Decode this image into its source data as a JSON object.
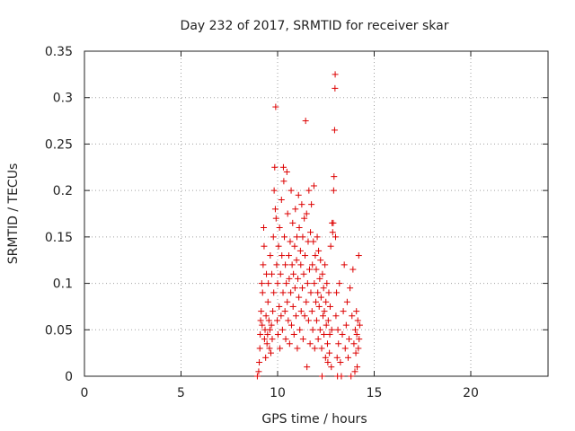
{
  "chart_data": {
    "type": "scatter",
    "title": "Day 232 of 2017, SRMTID for receiver skar",
    "xlabel": "GPS time / hours",
    "ylabel": "SRMTID / TECUs",
    "xlim": [
      0,
      24
    ],
    "ylim": [
      0,
      0.35
    ],
    "grid": true,
    "x_ticks": [
      0,
      5,
      10,
      15,
      20
    ],
    "x_tick_labels": [
      "0",
      "5",
      "10",
      "15",
      "20"
    ],
    "y_ticks": [
      0,
      0.05,
      0.1,
      0.15,
      0.2,
      0.25,
      0.3,
      0.35
    ],
    "y_tick_labels": [
      "0",
      "0.05",
      "0.1",
      "0.15",
      "0.2",
      "0.25",
      "0.3",
      "0.35"
    ],
    "marker": "+",
    "marker_color": "#dd0000",
    "axis_color": "#222222",
    "grid_color": "#a0a0a0",
    "series": [
      {
        "name": "SRMTID",
        "points": [
          [
            8.95,
            0.0
          ],
          [
            9.02,
            0.005
          ],
          [
            9.05,
            0.015
          ],
          [
            9.08,
            0.03
          ],
          [
            9.1,
            0.045
          ],
          [
            9.12,
            0.06
          ],
          [
            9.15,
            0.07
          ],
          [
            9.18,
            0.1
          ],
          [
            9.2,
            0.055
          ],
          [
            9.22,
            0.09
          ],
          [
            9.25,
            0.12
          ],
          [
            9.28,
            0.16
          ],
          [
            9.3,
            0.14
          ],
          [
            9.32,
            0.04
          ],
          [
            9.35,
            0.05
          ],
          [
            9.38,
            0.02
          ],
          [
            9.4,
            0.065
          ],
          [
            9.42,
            0.11
          ],
          [
            9.45,
            0.035
          ],
          [
            9.48,
            0.045
          ],
          [
            9.5,
            0.08
          ],
          [
            9.52,
            0.1
          ],
          [
            9.55,
            0.06
          ],
          [
            9.58,
            0.03
          ],
          [
            9.6,
            0.05
          ],
          [
            9.62,
            0.13
          ],
          [
            9.65,
            0.025
          ],
          [
            9.68,
            0.055
          ],
          [
            9.7,
            0.11
          ],
          [
            9.72,
            0.04
          ],
          [
            9.75,
            0.07
          ],
          [
            9.78,
            0.15
          ],
          [
            9.8,
            0.09
          ],
          [
            9.82,
            0.2
          ],
          [
            9.85,
            0.225
          ],
          [
            9.88,
            0.18
          ],
          [
            9.9,
            0.29
          ],
          [
            9.92,
            0.17
          ],
          [
            9.95,
            0.12
          ],
          [
            9.98,
            0.06
          ],
          [
            10.0,
            0.1
          ],
          [
            10.02,
            0.045
          ],
          [
            10.05,
            0.14
          ],
          [
            10.08,
            0.075
          ],
          [
            10.1,
            0.16
          ],
          [
            10.12,
            0.03
          ],
          [
            10.15,
            0.11
          ],
          [
            10.18,
            0.065
          ],
          [
            10.2,
            0.19
          ],
          [
            10.22,
            0.13
          ],
          [
            10.25,
            0.05
          ],
          [
            10.28,
            0.09
          ],
          [
            10.3,
            0.225
          ],
          [
            10.32,
            0.21
          ],
          [
            10.35,
            0.15
          ],
          [
            10.38,
            0.07
          ],
          [
            10.4,
            0.12
          ],
          [
            10.42,
            0.04
          ],
          [
            10.45,
            0.1
          ],
          [
            10.48,
            0.22
          ],
          [
            10.5,
            0.08
          ],
          [
            10.52,
            0.175
          ],
          [
            10.55,
            0.06
          ],
          [
            10.58,
            0.13
          ],
          [
            10.6,
            0.105
          ],
          [
            10.62,
            0.035
          ],
          [
            10.65,
            0.145
          ],
          [
            10.68,
            0.09
          ],
          [
            10.7,
            0.2
          ],
          [
            10.72,
            0.055
          ],
          [
            10.75,
            0.12
          ],
          [
            10.78,
            0.165
          ],
          [
            10.8,
            0.075
          ],
          [
            10.82,
            0.11
          ],
          [
            10.85,
            0.045
          ],
          [
            10.88,
            0.14
          ],
          [
            10.9,
            0.095
          ],
          [
            10.92,
            0.18
          ],
          [
            10.95,
            0.065
          ],
          [
            10.98,
            0.125
          ],
          [
            11.0,
            0.15
          ],
          [
            11.02,
            0.03
          ],
          [
            11.05,
            0.105
          ],
          [
            11.08,
            0.195
          ],
          [
            11.1,
            0.085
          ],
          [
            11.12,
            0.16
          ],
          [
            11.15,
            0.05
          ],
          [
            11.18,
            0.135
          ],
          [
            11.2,
            0.12
          ],
          [
            11.22,
            0.07
          ],
          [
            11.25,
            0.185
          ],
          [
            11.28,
            0.095
          ],
          [
            11.3,
            0.15
          ],
          [
            11.32,
            0.04
          ],
          [
            11.35,
            0.11
          ],
          [
            11.38,
            0.17
          ],
          [
            11.4,
            0.065
          ],
          [
            11.42,
            0.13
          ],
          [
            11.45,
            0.275
          ],
          [
            11.48,
            0.08
          ],
          [
            11.5,
            0.175
          ],
          [
            11.52,
            0.01
          ],
          [
            11.55,
            0.1
          ],
          [
            11.58,
            0.145
          ],
          [
            11.6,
            0.06
          ],
          [
            11.62,
            0.2
          ],
          [
            11.65,
            0.115
          ],
          [
            11.68,
            0.035
          ],
          [
            11.7,
            0.155
          ],
          [
            11.72,
            0.09
          ],
          [
            11.75,
            0.185
          ],
          [
            11.78,
            0.07
          ],
          [
            11.8,
            0.12
          ],
          [
            11.82,
            0.05
          ],
          [
            11.85,
            0.145
          ],
          [
            11.88,
            0.205
          ],
          [
            11.9,
            0.1
          ],
          [
            11.92,
            0.03
          ],
          [
            11.95,
            0.13
          ],
          [
            11.98,
            0.08
          ],
          [
            12.0,
            0.115
          ],
          [
            12.02,
            0.06
          ],
          [
            12.05,
            0.15
          ],
          [
            12.08,
            0.09
          ],
          [
            12.1,
            0.04
          ],
          [
            12.12,
            0.135
          ],
          [
            12.15,
            0.075
          ],
          [
            12.18,
            0.105
          ],
          [
            12.2,
            0.05
          ],
          [
            12.22,
            0.125
          ],
          [
            12.25,
            0.085
          ],
          [
            12.28,
            0.03
          ],
          [
            12.3,
            0.0
          ],
          [
            12.32,
            0.11
          ],
          [
            12.35,
            0.065
          ],
          [
            12.38,
            0.095
          ],
          [
            12.4,
            0.045
          ],
          [
            12.42,
            0.07
          ],
          [
            12.45,
            0.12
          ],
          [
            12.48,
            0.02
          ],
          [
            12.5,
            0.08
          ],
          [
            12.52,
            0.055
          ],
          [
            12.55,
            0.1
          ],
          [
            12.58,
            0.035
          ],
          [
            12.6,
            0.015
          ],
          [
            12.62,
            0.06
          ],
          [
            12.65,
            0.09
          ],
          [
            12.68,
            0.025
          ],
          [
            12.7,
            0.045
          ],
          [
            12.72,
            0.075
          ],
          [
            12.75,
            0.14
          ],
          [
            12.78,
            0.01
          ],
          [
            12.8,
            0.05
          ],
          [
            12.82,
            0.165
          ],
          [
            12.85,
            0.155
          ],
          [
            12.88,
            0.165
          ],
          [
            12.9,
            0.2
          ],
          [
            12.92,
            0.215
          ],
          [
            12.95,
            0.265
          ],
          [
            12.97,
            0.31
          ],
          [
            12.98,
            0.325
          ],
          [
            13.0,
            0.15
          ],
          [
            13.02,
            0.065
          ],
          [
            13.05,
            0.09
          ],
          [
            13.08,
            0.02
          ],
          [
            13.1,
            0.0
          ],
          [
            13.12,
            0.05
          ],
          [
            13.15,
            0.035
          ],
          [
            13.2,
            0.1
          ],
          [
            13.25,
            0.015
          ],
          [
            13.3,
            0.0
          ],
          [
            13.35,
            0.045
          ],
          [
            13.4,
            0.07
          ],
          [
            13.45,
            0.12
          ],
          [
            13.5,
            0.03
          ],
          [
            13.55,
            0.055
          ],
          [
            13.6,
            0.08
          ],
          [
            13.65,
            0.02
          ],
          [
            13.7,
            0.04
          ],
          [
            13.75,
            0.095
          ],
          [
            13.8,
            0.0
          ],
          [
            13.85,
            0.065
          ],
          [
            13.9,
            0.115
          ],
          [
            13.95,
            0.035
          ],
          [
            14.0,
            0.005
          ],
          [
            14.02,
            0.05
          ],
          [
            14.05,
            0.025
          ],
          [
            14.08,
            0.07
          ],
          [
            14.1,
            0.045
          ],
          [
            14.12,
            0.01
          ],
          [
            14.15,
            0.06
          ],
          [
            14.18,
            0.03
          ],
          [
            14.2,
            0.13
          ],
          [
            14.22,
            0.04
          ],
          [
            14.25,
            0.055
          ]
        ]
      }
    ]
  }
}
